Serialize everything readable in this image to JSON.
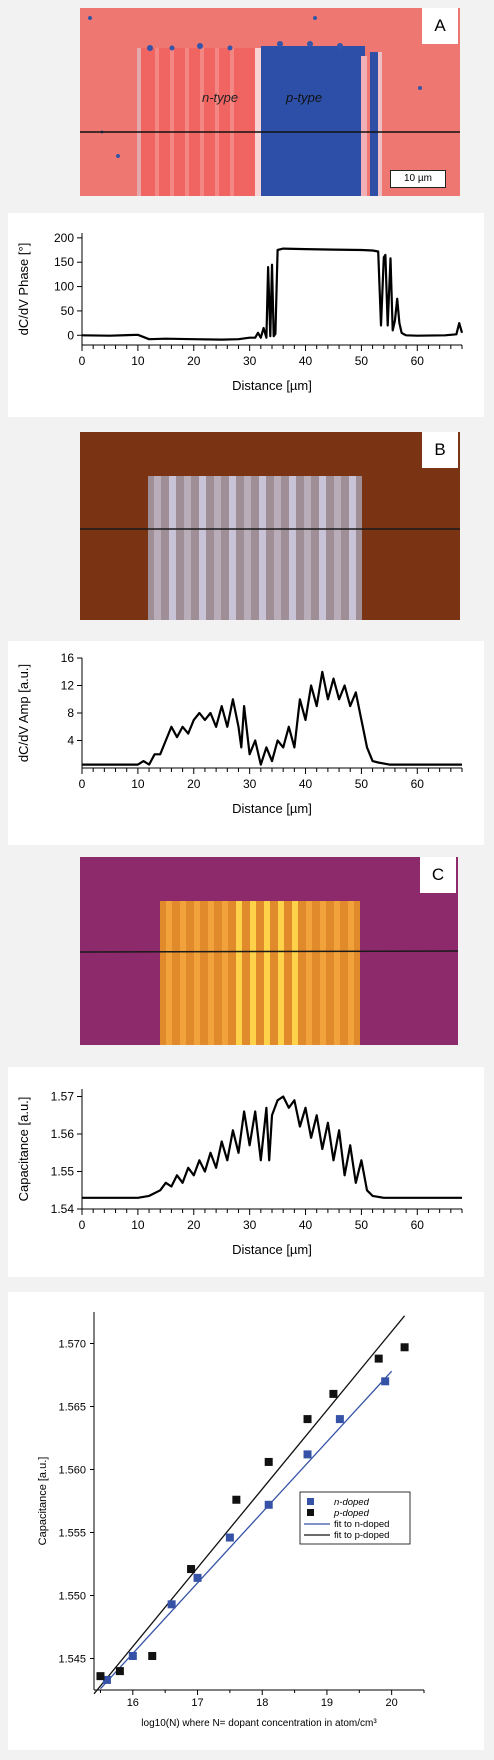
{
  "panels": [
    {
      "letter": "A",
      "image_labels": {
        "left": "n-type",
        "right": "p-type"
      },
      "scale_bar": "10 µm"
    },
    {
      "letter": "B"
    },
    {
      "letter": "C"
    }
  ],
  "chart_data": [
    {
      "type": "line",
      "ylabel": "dC/dV Phase [°]",
      "xlabel": "Distance [µm]",
      "xlim": [
        0,
        68
      ],
      "ylim": [
        -20,
        210
      ],
      "xticks": [
        0,
        10,
        20,
        30,
        40,
        50,
        60
      ],
      "yticks": [
        0,
        50,
        100,
        150,
        200
      ],
      "x": [
        0,
        5,
        10,
        12,
        15,
        20,
        25,
        28,
        30,
        31,
        31.5,
        32,
        32.5,
        33,
        33.3,
        33.7,
        34,
        34.3,
        34.6,
        35,
        36,
        40,
        45,
        50,
        52,
        53,
        53.5,
        54,
        54.3,
        54.7,
        55.2,
        55.6,
        56,
        56.4,
        56.8,
        57.2,
        57.6,
        58,
        60,
        65,
        67,
        67.5,
        68
      ],
      "y": [
        0,
        -1,
        1,
        -8,
        -7,
        -8,
        -9,
        -8,
        -5,
        -5,
        5,
        -5,
        15,
        -5,
        140,
        -2,
        145,
        -2,
        3,
        175,
        178,
        177,
        176,
        175,
        174,
        172,
        20,
        160,
        165,
        20,
        158,
        10,
        30,
        75,
        25,
        5,
        2,
        0,
        -1,
        0,
        2,
        25,
        5
      ]
    },
    {
      "type": "line",
      "ylabel": "dC/dV Amp [a.u.]",
      "xlabel": "Distance [µm]",
      "xlim": [
        0,
        68
      ],
      "ylim": [
        0,
        16
      ],
      "xticks": [
        0,
        10,
        20,
        30,
        40,
        50,
        60
      ],
      "yticks": [
        4,
        8,
        12,
        16
      ],
      "x": [
        0,
        5,
        10,
        11,
        12,
        13,
        14,
        15,
        16,
        17,
        18,
        19,
        20,
        21,
        22,
        23,
        24,
        25,
        26,
        27,
        28,
        28.5,
        29,
        30,
        31,
        32,
        33,
        34,
        35,
        36,
        37,
        38,
        39,
        40,
        41,
        42,
        43,
        44,
        45,
        46,
        47,
        48,
        49,
        50,
        51,
        52,
        53,
        55,
        60,
        65,
        68
      ],
      "y": [
        0.5,
        0.5,
        0.5,
        1,
        0.5,
        2,
        2,
        4,
        6,
        4.5,
        6,
        5,
        7,
        8,
        7,
        8,
        6,
        9,
        6,
        10,
        6,
        3,
        9,
        2,
        4,
        0.5,
        3,
        1,
        4,
        3,
        6,
        3,
        10,
        7,
        12,
        9,
        14,
        10,
        13,
        10,
        12,
        9,
        11,
        7,
        3,
        1,
        0.8,
        0.5,
        0.5,
        0.5,
        0.5
      ]
    },
    {
      "type": "line",
      "ylabel": "Capacitance [a.u.]",
      "xlabel": "Distance [µm]",
      "xlim": [
        0,
        68
      ],
      "ylim": [
        1.54,
        1.572
      ],
      "xticks": [
        0,
        10,
        20,
        30,
        40,
        50,
        60
      ],
      "yticks": [
        1.54,
        1.55,
        1.56,
        1.57
      ],
      "x": [
        0,
        10,
        12,
        14,
        15,
        16,
        17,
        18,
        19,
        20,
        21,
        22,
        23,
        24,
        25,
        26,
        27,
        28,
        29,
        30,
        31,
        32,
        33,
        33.5,
        34,
        35,
        36,
        37,
        38,
        39,
        40,
        41,
        42,
        43,
        44,
        45,
        46,
        47,
        48,
        49,
        50,
        51,
        52,
        54,
        60,
        68
      ],
      "y": [
        1.543,
        1.543,
        1.5435,
        1.545,
        1.547,
        1.546,
        1.549,
        1.547,
        1.551,
        1.549,
        1.553,
        1.55,
        1.555,
        1.551,
        1.558,
        1.553,
        1.561,
        1.555,
        1.566,
        1.557,
        1.566,
        1.553,
        1.567,
        1.553,
        1.565,
        1.569,
        1.57,
        1.567,
        1.569,
        1.562,
        1.567,
        1.559,
        1.565,
        1.556,
        1.563,
        1.553,
        1.561,
        1.549,
        1.557,
        1.547,
        1.553,
        1.545,
        1.5435,
        1.543,
        1.543,
        1.543
      ]
    },
    {
      "type": "scatter",
      "ylabel": "Capacitance [a.u.]",
      "xlabel": "log10(N) where N= dopant concentration in atom/cm³",
      "xlim": [
        15.4,
        20.5
      ],
      "ylim": [
        1.5425,
        1.5725
      ],
      "xticks": [
        16,
        17,
        18,
        19,
        20
      ],
      "yticks": [
        1.545,
        1.55,
        1.555,
        1.56,
        1.565,
        1.57
      ],
      "ytick_labels": [
        "1.545",
        "1.550",
        "1.555",
        "1.560",
        "1.565",
        "1.570"
      ],
      "legend": "inside right",
      "series": [
        {
          "name": "n-doped",
          "color": "#3552a6",
          "x": [
            15.6,
            16.0,
            16.6,
            17.0,
            17.5,
            18.1,
            18.7,
            19.2,
            19.9
          ],
          "y": [
            1.5433,
            1.5452,
            1.5493,
            1.5514,
            1.5546,
            1.5572,
            1.5612,
            1.564,
            1.567
          ]
        },
        {
          "name": "p-doped",
          "color": "#111111",
          "x": [
            15.5,
            15.8,
            16.3,
            16.9,
            17.6,
            18.1,
            18.7,
            19.1,
            19.8,
            20.2
          ],
          "y": [
            1.5436,
            1.544,
            1.5452,
            1.5521,
            1.5576,
            1.5606,
            1.564,
            1.566,
            1.5688,
            1.5697
          ]
        }
      ],
      "fits": [
        {
          "name": "fit to n-doped",
          "color": "#3552a6",
          "x": [
            15.5,
            20.0
          ],
          "y": [
            1.5426,
            1.5678
          ]
        },
        {
          "name": "fit to p-doped",
          "color": "#111111",
          "x": [
            15.4,
            20.2
          ],
          "y": [
            1.5422,
            1.5722
          ]
        }
      ]
    }
  ]
}
